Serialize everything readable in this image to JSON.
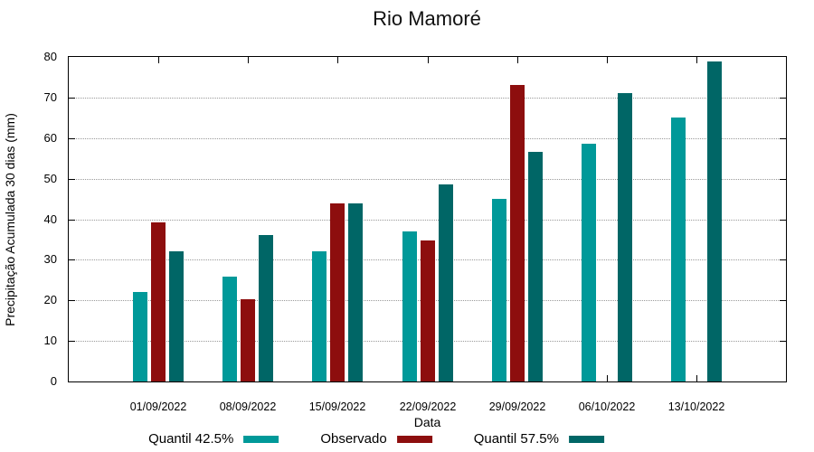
{
  "chart_data": {
    "type": "bar",
    "title": "Rio Mamoré",
    "xlabel": "Data",
    "ylabel": "Precipitação Acumulada 30 dias (mm)",
    "categories": [
      "01/09/2022",
      "08/09/2022",
      "15/09/2022",
      "22/09/2022",
      "29/09/2022",
      "06/10/2022",
      "13/10/2022"
    ],
    "series": [
      {
        "name": "Quantil 42.5%",
        "color": "#009999",
        "values": [
          22,
          25.8,
          32,
          37,
          45,
          58.5,
          65
        ]
      },
      {
        "name": "Observado",
        "color": "#8D0E0E",
        "values": [
          39.3,
          20.2,
          44,
          34.8,
          73.2,
          null,
          null
        ]
      },
      {
        "name": "Quantil 57.5%",
        "color": "#006666",
        "values": [
          32.2,
          36.2,
          44,
          48.5,
          56.5,
          71,
          79
        ]
      }
    ],
    "ylim": [
      0,
      80
    ],
    "yticks": [
      0,
      10,
      20,
      30,
      40,
      50,
      60,
      70,
      80
    ],
    "grid": "horizontal-dotted",
    "legend_position": "bottom-center",
    "frame": "full-box with mirrored inward ticks"
  }
}
